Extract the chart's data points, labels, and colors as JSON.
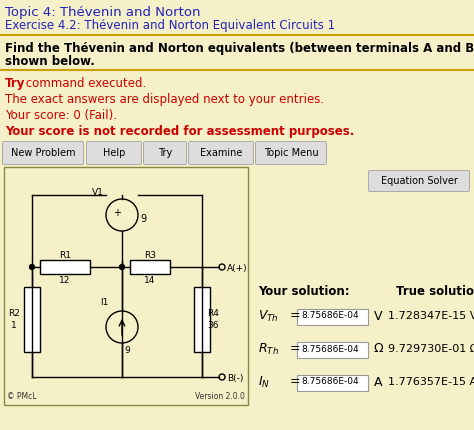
{
  "bg_color": "#F5F0C8",
  "title_text": "Topic 4: Thévenin and Norton",
  "subtitle_text": "Exercise 4.2: Thévenin and Norton Equivalent Circuits 1",
  "title_color": "#2222bb",
  "subtitle_color": "#2222bb",
  "problem_line1": "Find the Thévenin and Norton equivalents (between terminals A and B) of the circuit",
  "problem_line2": "shown below.",
  "problem_color": "#000000",
  "msg_try": "Try",
  "msg_rest": " command executed.",
  "msg2": "The exact answers are displayed next to your entries.",
  "msg3": "Your score: 0 (Fail).",
  "msg4": "Your score is not recorded for assessment purposes.",
  "red_color": "#cc0000",
  "buttons": [
    "New Problem",
    "Help",
    "Try",
    "Examine",
    "Topic Menu"
  ],
  "eq_solver_btn": "Equation Solver",
  "your_solution_label": "Your solution:",
  "true_solution_label": "True solution:",
  "vth_user": "8.75686E-04",
  "rth_user": "8.75686E-04",
  "in_user": "8.75686E-04",
  "vth_true": "1.728347E-15 V",
  "rth_true": "9.729730E-01 Ω",
  "in_true": "1.776357E-15 A",
  "unit_vth": "V",
  "unit_rth": "Ω",
  "unit_in": "A",
  "divider_color": "#c8a000",
  "circuit_bg": "#F5F0C8",
  "circuit_border": "#888844"
}
